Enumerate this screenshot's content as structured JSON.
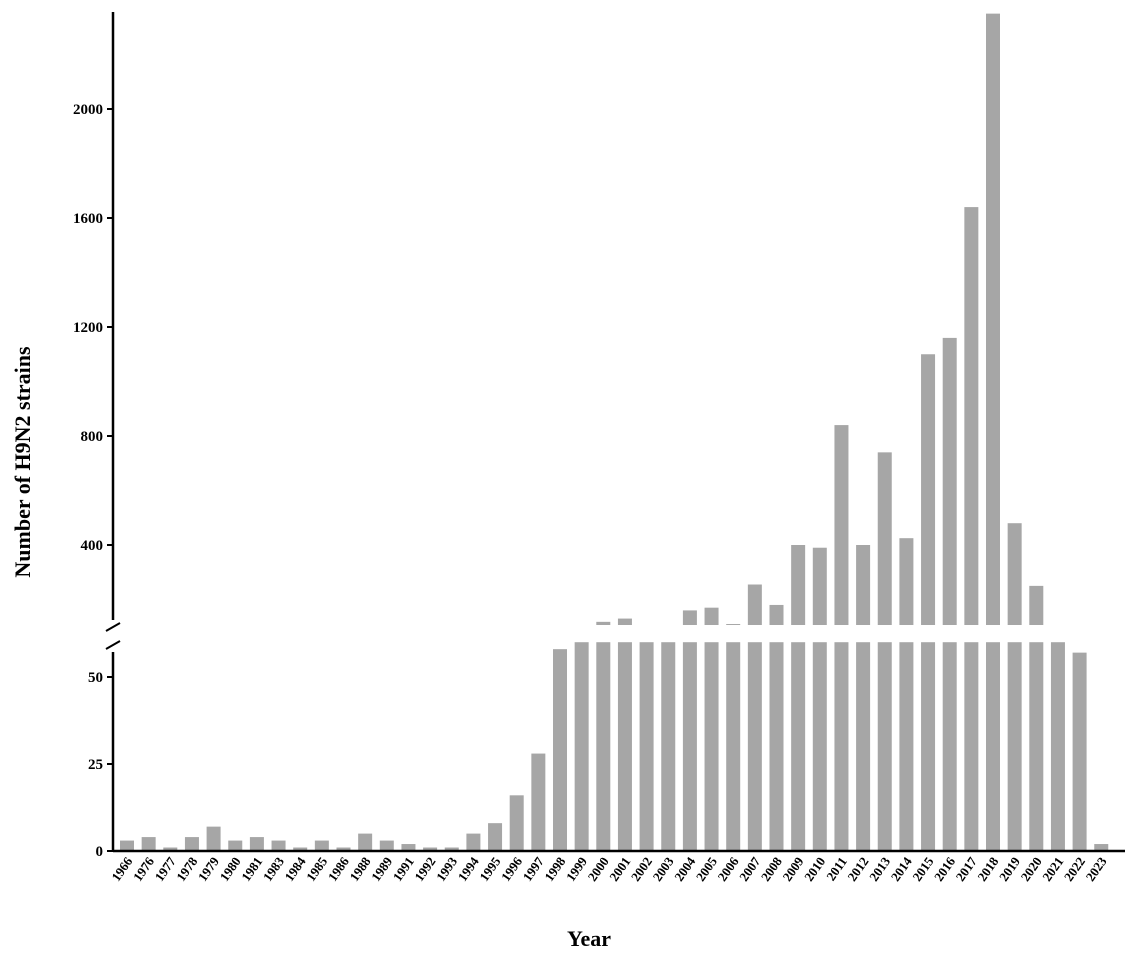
{
  "chart_data": {
    "type": "bar",
    "xlabel": "Year",
    "ylabel": "Number of  H9N2 strains",
    "bar_color": "#a6a6a6",
    "axis_break": {
      "lower_range": [
        0,
        60
      ],
      "upper_range": [
        100,
        2400
      ]
    },
    "lower_ticks": [
      0,
      25,
      50
    ],
    "upper_ticks": [
      400,
      800,
      1200,
      1600,
      2000
    ],
    "categories": [
      "1966",
      "1976",
      "1977",
      "1978",
      "1979",
      "1980",
      "1981",
      "1983",
      "1984",
      "1985",
      "1986",
      "1988",
      "1989",
      "1991",
      "1992",
      "1993",
      "1994",
      "1995",
      "1996",
      "1997",
      "1998",
      "1999",
      "2000",
      "2001",
      "2002",
      "2003",
      "2004",
      "2005",
      "2006",
      "2007",
      "2008",
      "2009",
      "2010",
      "2011",
      "2012",
      "2013",
      "2014",
      "2015",
      "2016",
      "2017",
      "2018",
      "2019",
      "2020",
      "2021",
      "2022",
      "2023"
    ],
    "values": [
      3,
      4,
      1,
      4,
      7,
      3,
      4,
      3,
      1,
      3,
      1,
      5,
      3,
      2,
      1,
      1,
      5,
      8,
      16,
      28,
      58,
      77,
      118,
      130,
      90,
      85,
      160,
      170,
      110,
      255,
      180,
      400,
      390,
      840,
      400,
      740,
      425,
      1100,
      1160,
      1640,
      2350,
      480,
      250,
      70,
      57,
      2
    ]
  }
}
